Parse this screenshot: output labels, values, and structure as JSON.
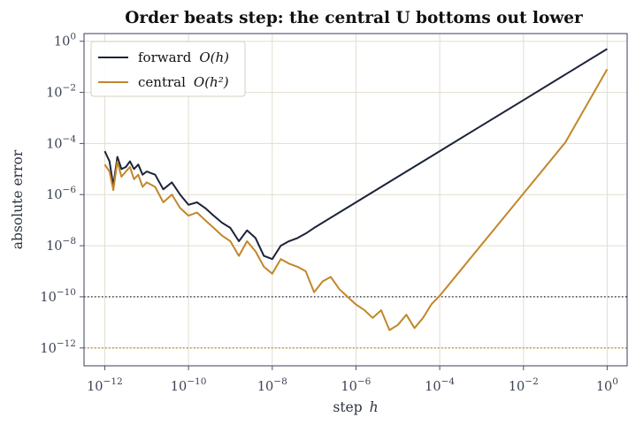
{
  "chart_data": {
    "type": "line",
    "title": "Order beats step: the central U bottoms out lower",
    "xlabel": "step",
    "xlabel_var": "h",
    "ylabel": "absolute error",
    "xscale": "log",
    "yscale": "log",
    "xlim": [
      3.2e-13,
      3.0
    ],
    "ylim": [
      2e-13,
      2.0
    ],
    "grid": true,
    "legend_position": "top-left",
    "xticks": [
      {
        "value": 1e-12,
        "base": "10",
        "exp": "−12"
      },
      {
        "value": 1e-10,
        "base": "10",
        "exp": "−10"
      },
      {
        "value": 1e-08,
        "base": "10",
        "exp": "−8"
      },
      {
        "value": 1e-06,
        "base": "10",
        "exp": "−6"
      },
      {
        "value": 0.0001,
        "base": "10",
        "exp": "−4"
      },
      {
        "value": 0.01,
        "base": "10",
        "exp": "−2"
      },
      {
        "value": 1,
        "base": "10",
        "exp": "0"
      }
    ],
    "yticks": [
      {
        "value": 1,
        "base": "10",
        "exp": "0"
      },
      {
        "value": 0.01,
        "base": "10",
        "exp": "−2"
      },
      {
        "value": 0.0001,
        "base": "10",
        "exp": "−4"
      },
      {
        "value": 1e-06,
        "base": "10",
        "exp": "−6"
      },
      {
        "value": 1e-08,
        "base": "10",
        "exp": "−8"
      },
      {
        "value": 1e-10,
        "base": "10",
        "exp": "−10"
      },
      {
        "value": 1e-12,
        "base": "10",
        "exp": "−12"
      }
    ],
    "reference_lines": [
      {
        "value": 1e-10,
        "color": "#1b2338",
        "style": "dotted"
      },
      {
        "value": 1e-12,
        "color": "#c2872a",
        "style": "dotted"
      }
    ],
    "series": [
      {
        "name": "forward",
        "order_label": "O(h)",
        "color": "#1b2338",
        "x": [
          1e-12,
          1.3e-12,
          1.6e-12,
          2e-12,
          2.5e-12,
          3.2e-12,
          4e-12,
          5e-12,
          6.3e-12,
          8e-12,
          1e-11,
          1.6e-11,
          2.5e-11,
          4e-11,
          6.3e-11,
          1e-10,
          1.6e-10,
          2.5e-10,
          4e-10,
          6.3e-10,
          1e-09,
          1.6e-09,
          2.5e-09,
          4e-09,
          6.3e-09,
          1e-08,
          1.6e-08,
          2.5e-08,
          4e-08,
          6.3e-08,
          1e-07,
          1e-06,
          1e-05,
          0.0001,
          0.001,
          0.01,
          0.1,
          1
        ],
        "y": [
          5e-05,
          2e-05,
          2.2e-06,
          3e-05,
          1e-05,
          1.2e-05,
          2e-05,
          1e-05,
          1.5e-05,
          6e-06,
          8e-06,
          6e-06,
          1.6e-06,
          3e-06,
          1e-06,
          4e-07,
          5e-07,
          3e-07,
          1.5e-07,
          8e-08,
          5e-08,
          1.5e-08,
          4e-08,
          2e-08,
          4e-09,
          3e-09,
          1e-08,
          1.5e-08,
          2e-08,
          3e-08,
          5e-08,
          5e-07,
          5e-06,
          5e-05,
          0.0005,
          0.005,
          0.05,
          0.5
        ]
      },
      {
        "name": "central",
        "order_label": "O(h²)",
        "color": "#c2872a",
        "x": [
          1e-12,
          1.3e-12,
          1.6e-12,
          2e-12,
          2.5e-12,
          3.2e-12,
          4e-12,
          5e-12,
          6.3e-12,
          8e-12,
          1e-11,
          1.6e-11,
          2.5e-11,
          4e-11,
          6.3e-11,
          1e-10,
          1.6e-10,
          2.5e-10,
          4e-10,
          6.3e-10,
          1e-09,
          1.6e-09,
          2.5e-09,
          4e-09,
          6.3e-09,
          1e-08,
          1.6e-08,
          2.5e-08,
          4e-08,
          6.3e-08,
          1e-07,
          1.6e-07,
          2.5e-07,
          4e-07,
          6.3e-07,
          1e-06,
          1.6e-06,
          2.5e-06,
          4e-06,
          6.3e-06,
          1e-05,
          1.6e-05,
          2.5e-05,
          4e-05,
          6.3e-05,
          0.0001,
          0.001,
          0.01,
          0.1,
          1
        ],
        "y": [
          1.5e-05,
          8e-06,
          1.5e-06,
          2e-05,
          5e-06,
          8e-06,
          1.2e-05,
          4e-06,
          6e-06,
          2e-06,
          3e-06,
          2e-06,
          5e-07,
          1e-06,
          3e-07,
          1.5e-07,
          2e-07,
          1e-07,
          5e-08,
          2.5e-08,
          1.5e-08,
          4e-09,
          1.5e-08,
          6e-09,
          1.5e-09,
          8e-10,
          3e-09,
          2e-09,
          1.5e-09,
          1e-09,
          1.5e-10,
          4e-10,
          6e-10,
          2e-10,
          1e-10,
          5e-11,
          3e-11,
          1.5e-11,
          3e-11,
          5e-12,
          8e-12,
          2e-11,
          6e-12,
          1.5e-11,
          5e-11,
          1.1e-10,
          1.1e-08,
          1.1e-06,
          0.00011,
          0.08
        ]
      }
    ]
  }
}
